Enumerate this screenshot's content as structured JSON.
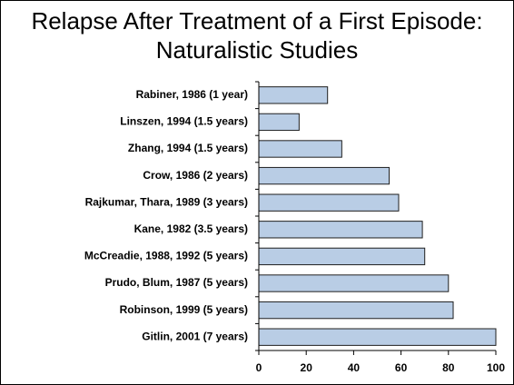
{
  "chart_data": {
    "type": "barh",
    "title": "Relapse After Treatment of a First Episode: Naturalistic Studies",
    "categories": [
      "Rabiner, 1986 (1 year)",
      "Linszen, 1994 (1.5 years)",
      "Zhang, 1994 (1.5 years)",
      "Crow, 1986 (2 years)",
      "Rajkumar, Thara, 1989 (3 years)",
      "Kane, 1982 (3.5 years)",
      "McCreadie,  1988, 1992 (5 years)",
      "Prudo, Blum, 1987 (5 years)",
      "Robinson, 1999  (5 years)",
      "Gitlin, 2001 (7 years)"
    ],
    "values": [
      29,
      17,
      35,
      55,
      59,
      69,
      70,
      80,
      82,
      100
    ],
    "color": "#b9cde5",
    "xlim": [
      0,
      100
    ],
    "xticks": [
      0,
      20,
      40,
      60,
      80,
      100
    ],
    "grid": false
  }
}
